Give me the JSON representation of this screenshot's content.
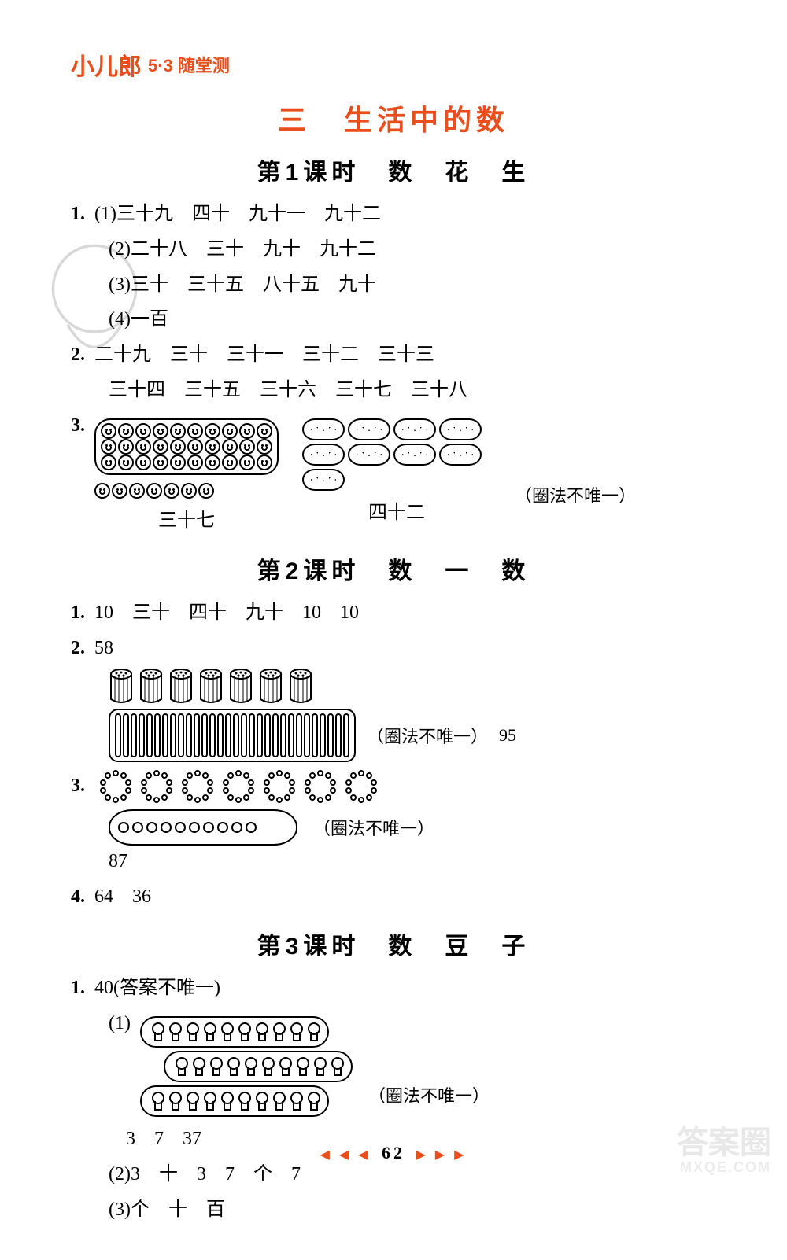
{
  "brand": {
    "logo": "小儿郎",
    "sub": "5·3 随堂测"
  },
  "chapter": "三　生活中的数",
  "lessons": [
    {
      "title": "第1课时　数　花　生"
    },
    {
      "title": "第2课时　数　一　数"
    },
    {
      "title": "第3课时　数　豆　子"
    }
  ],
  "l1": {
    "q1": {
      "num": "1.",
      "a": "(1)三十九　四十　九十一　九十二",
      "b": "(2)二十八　三十　九十　九十二",
      "c": "(3)三十　三十五　八十五　九十",
      "d": "(4)一百"
    },
    "q2": {
      "num": "2.",
      "a": "二十九　三十　三十一　三十二　三十三",
      "b": "三十四　三十五　三十六　三十七　三十八"
    },
    "q3": {
      "num": "3.",
      "left_val": "三十七",
      "right_val": "四十二",
      "note": "（圈法不唯一）",
      "face_rows": 3,
      "face_cols": 10,
      "face_extra": 7,
      "peanut_count": 9
    }
  },
  "l2": {
    "q1": {
      "num": "1.",
      "text": "10　三十　四十　九十　10　10"
    },
    "q2": {
      "num": "2.",
      "val": "58",
      "bundle_count": 7,
      "stick_count": 30,
      "note": "（圈法不唯一）",
      "result": "95"
    },
    "q3": {
      "num": "3.",
      "circle_count": 7,
      "pod_bead_count": 10,
      "note": "（圈法不唯一）",
      "result": "87"
    },
    "q4": {
      "num": "4.",
      "text": "64　36"
    }
  },
  "l3": {
    "q1": {
      "num": "1.",
      "head": "40(答案不唯一)",
      "p1_label": "(1)",
      "pod_bulbs": 10,
      "pod_rows": 3,
      "note": "（圈法不唯一）",
      "p1_vals": "3　7　37",
      "p2": "(2)3　十　3　7　个　7",
      "p3": "(3)个　十　百"
    }
  },
  "footer": {
    "left": "◀ ◀ ◀",
    "num": "62",
    "right": "▶ ▶ ▶"
  },
  "watermark": {
    "big": "答案圈",
    "small": "MXQE.COM"
  },
  "colors": {
    "accent": "#e94e1b",
    "text": "#000000",
    "bg": "#ffffff",
    "watermark": "#e8e8e8"
  }
}
